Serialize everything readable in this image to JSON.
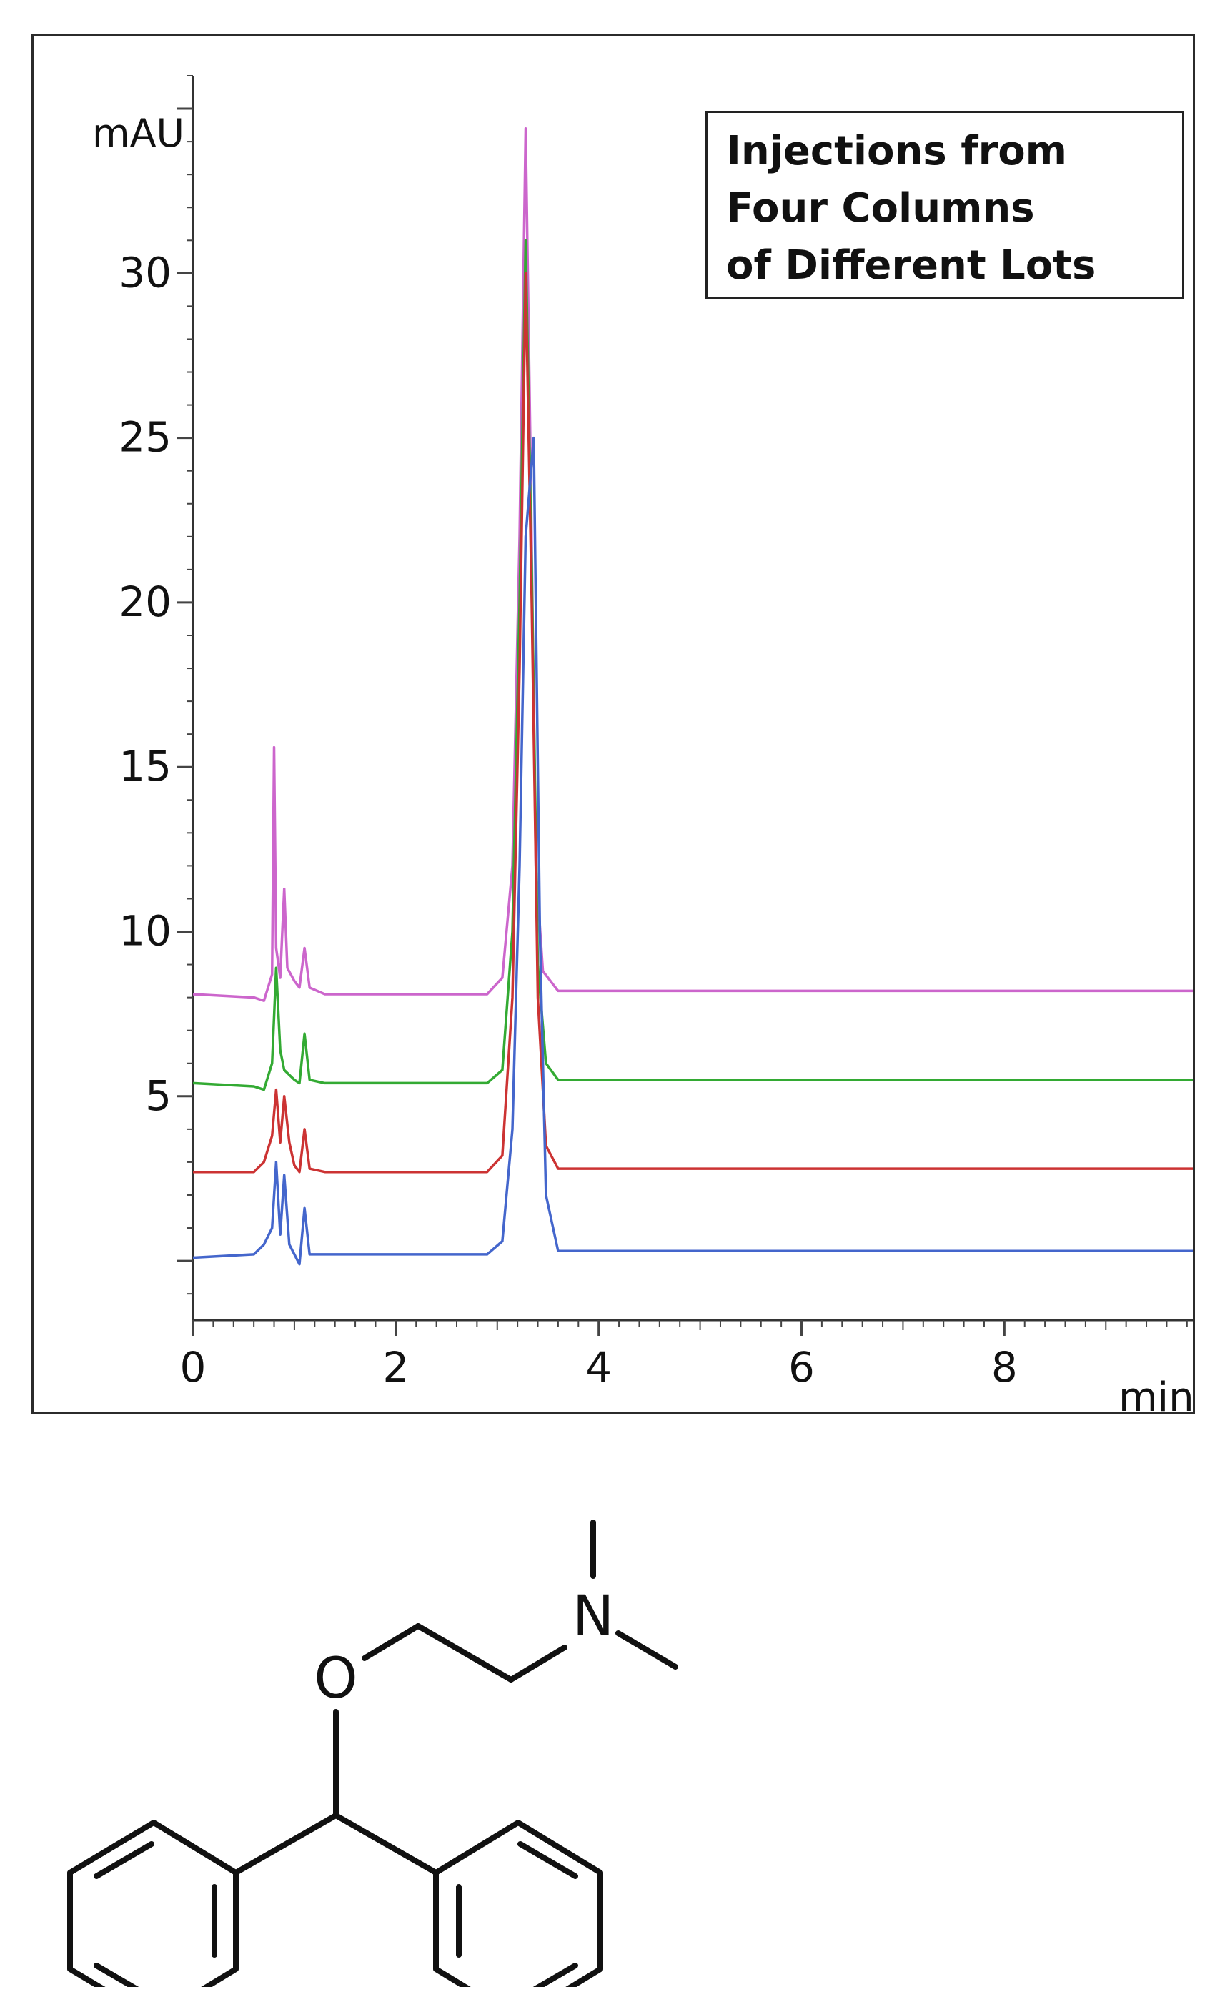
{
  "chart_data": {
    "type": "line",
    "title": "Injections from Four Columns of Different Lots",
    "title_lines": [
      "Injections from",
      "Four Columns",
      "of Different Lots"
    ],
    "xlabel": "min",
    "ylabel": "mAU",
    "xlim": [
      0,
      9.9
    ],
    "ylim": [
      -1.8,
      36
    ],
    "x_ticks": [
      0,
      2,
      4,
      6,
      8
    ],
    "y_ticks": [
      5,
      10,
      15,
      20,
      25,
      30
    ],
    "grid": false,
    "legend": "none",
    "series": [
      {
        "color": "#cc66cc",
        "baseline": 8.1,
        "points": [
          [
            0,
            8.1
          ],
          [
            0.6,
            8.0
          ],
          [
            0.7,
            7.9
          ],
          [
            0.78,
            8.7
          ],
          [
            0.8,
            15.6
          ],
          [
            0.82,
            9.5
          ],
          [
            0.86,
            8.6
          ],
          [
            0.9,
            11.3
          ],
          [
            0.93,
            8.9
          ],
          [
            1.0,
            8.5
          ],
          [
            1.05,
            8.3
          ],
          [
            1.1,
            9.5
          ],
          [
            1.15,
            8.3
          ],
          [
            1.3,
            8.1
          ],
          [
            2.9,
            8.1
          ],
          [
            3.05,
            8.6
          ],
          [
            3.15,
            12.0
          ],
          [
            3.22,
            22.0
          ],
          [
            3.28,
            34.4
          ],
          [
            3.33,
            24.0
          ],
          [
            3.38,
            12.0
          ],
          [
            3.45,
            8.8
          ],
          [
            3.6,
            8.2
          ],
          [
            9.9,
            8.2
          ]
        ]
      },
      {
        "color": "#33aa33",
        "baseline": 5.4,
        "points": [
          [
            0,
            5.4
          ],
          [
            0.6,
            5.3
          ],
          [
            0.7,
            5.2
          ],
          [
            0.78,
            6.0
          ],
          [
            0.82,
            8.9
          ],
          [
            0.86,
            6.4
          ],
          [
            0.9,
            5.8
          ],
          [
            1.0,
            5.5
          ],
          [
            1.05,
            5.4
          ],
          [
            1.1,
            6.9
          ],
          [
            1.15,
            5.5
          ],
          [
            1.3,
            5.4
          ],
          [
            2.9,
            5.4
          ],
          [
            3.05,
            5.8
          ],
          [
            3.15,
            10.0
          ],
          [
            3.22,
            20.0
          ],
          [
            3.28,
            31.0
          ],
          [
            3.34,
            21.0
          ],
          [
            3.4,
            9.0
          ],
          [
            3.48,
            6.0
          ],
          [
            3.6,
            5.5
          ],
          [
            9.9,
            5.5
          ]
        ]
      },
      {
        "color": "#cc3333",
        "baseline": 2.7,
        "points": [
          [
            0,
            2.7
          ],
          [
            0.6,
            2.7
          ],
          [
            0.7,
            3.0
          ],
          [
            0.78,
            3.8
          ],
          [
            0.82,
            5.2
          ],
          [
            0.86,
            3.6
          ],
          [
            0.9,
            5.0
          ],
          [
            0.95,
            3.6
          ],
          [
            1.0,
            2.9
          ],
          [
            1.05,
            2.7
          ],
          [
            1.1,
            4.0
          ],
          [
            1.15,
            2.8
          ],
          [
            1.3,
            2.7
          ],
          [
            2.9,
            2.7
          ],
          [
            3.05,
            3.2
          ],
          [
            3.15,
            8.0
          ],
          [
            3.22,
            18.0
          ],
          [
            3.28,
            30.0
          ],
          [
            3.34,
            20.0
          ],
          [
            3.4,
            8.0
          ],
          [
            3.48,
            3.5
          ],
          [
            3.6,
            2.8
          ],
          [
            9.9,
            2.8
          ]
        ]
      },
      {
        "color": "#4466cc",
        "baseline": 0.1,
        "points": [
          [
            0,
            0.1
          ],
          [
            0.6,
            0.2
          ],
          [
            0.7,
            0.5
          ],
          [
            0.78,
            1.0
          ],
          [
            0.82,
            3.0
          ],
          [
            0.86,
            0.8
          ],
          [
            0.9,
            2.6
          ],
          [
            0.95,
            0.5
          ],
          [
            1.05,
            -0.1
          ],
          [
            1.1,
            1.6
          ],
          [
            1.15,
            0.2
          ],
          [
            1.3,
            0.2
          ],
          [
            2.9,
            0.2
          ],
          [
            3.05,
            0.6
          ],
          [
            3.15,
            4.0
          ],
          [
            3.22,
            12.0
          ],
          [
            3.28,
            22.0
          ],
          [
            3.36,
            25.0
          ],
          [
            3.42,
            10.0
          ],
          [
            3.48,
            2.0
          ],
          [
            3.6,
            0.3
          ],
          [
            9.9,
            0.3
          ]
        ]
      }
    ]
  },
  "molecule": {
    "atom_labels": [
      "O",
      "N"
    ]
  }
}
